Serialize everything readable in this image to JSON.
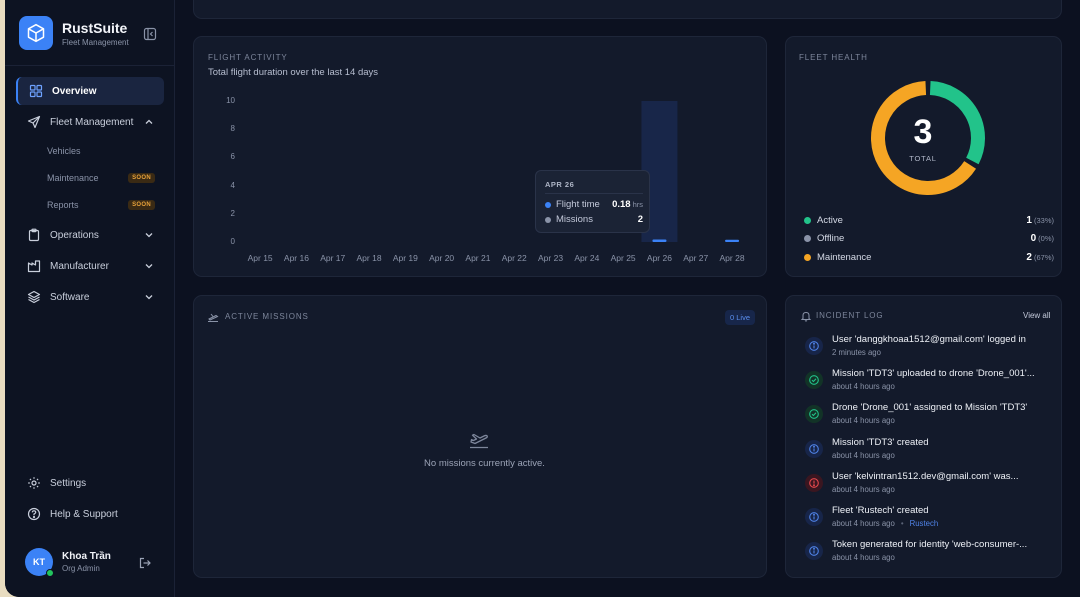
{
  "brand": {
    "name": "RustSuite",
    "subtitle": "Fleet Management"
  },
  "nav": {
    "overview": "Overview",
    "fleet_management": "Fleet Management",
    "sub": {
      "vehicles": "Vehicles",
      "maintenance": "Maintenance",
      "reports": "Reports",
      "soon": "SOON"
    },
    "operations": "Operations",
    "manufacturer": "Manufacturer",
    "software": "Software",
    "settings": "Settings",
    "help": "Help & Support"
  },
  "user": {
    "initials": "KT",
    "name": "Khoa Trần",
    "role": "Org Admin"
  },
  "flight_activity": {
    "label": "FLIGHT ACTIVITY",
    "subtitle": "Total flight duration over the last 14 days",
    "tooltip": {
      "date": "APR 26",
      "flight_time_label": "Flight time",
      "flight_time_value": "0.18",
      "flight_time_unit": "hrs",
      "missions_label": "Missions",
      "missions_value": "2"
    }
  },
  "chart_data": {
    "type": "bar",
    "categories": [
      "Apr 15",
      "Apr 16",
      "Apr 17",
      "Apr 18",
      "Apr 19",
      "Apr 20",
      "Apr 21",
      "Apr 22",
      "Apr 23",
      "Apr 24",
      "Apr 25",
      "Apr 26",
      "Apr 27",
      "Apr 28"
    ],
    "values": [
      0,
      0,
      0,
      0,
      0,
      0,
      0,
      0,
      0,
      0,
      0,
      0.18,
      0,
      0.1
    ],
    "yticks": [
      "10",
      "8",
      "6",
      "4",
      "2",
      "0"
    ],
    "ylim": [
      0,
      10
    ],
    "highlighted": "Apr 26",
    "grid": false,
    "bar_color": "#3b82f6"
  },
  "fleet_health": {
    "label": "FLEET HEALTH",
    "total": "3",
    "total_label": "TOTAL",
    "segments": [
      {
        "name": "Active",
        "value": 1,
        "count": "1",
        "pct": "(33%)",
        "color": "#22c38a"
      },
      {
        "name": "Offline",
        "value": 0,
        "count": "0",
        "pct": "(0%)",
        "color": "#8a93a8"
      },
      {
        "name": "Maintenance",
        "value": 2,
        "count": "2",
        "pct": "(67%)",
        "color": "#f5a524"
      }
    ]
  },
  "active_missions": {
    "label": "ACTIVE MISSIONS",
    "badge": "0 Live",
    "empty": "No missions currently active."
  },
  "incident_log": {
    "label": "INCIDENT LOG",
    "view_all": "View all",
    "items": [
      {
        "kind": "info",
        "title": "User 'danggkhoaa1512@gmail.com' logged in",
        "time": "2 minutes ago"
      },
      {
        "kind": "success",
        "title": "Mission 'TDT3' uploaded to drone 'Drone_001'...",
        "time": "about 4 hours ago"
      },
      {
        "kind": "success",
        "title": "Drone 'Drone_001' assigned to Mission 'TDT3'",
        "time": "about 4 hours ago"
      },
      {
        "kind": "info",
        "title": "Mission 'TDT3' created",
        "time": "about 4 hours ago"
      },
      {
        "kind": "error",
        "title": "User 'kelvintran1512.dev@gmail.com' was...",
        "time": "about 4 hours ago"
      },
      {
        "kind": "info",
        "title": "Fleet 'Rustech' created",
        "time": "about 4 hours ago",
        "tag": "Rustech"
      },
      {
        "kind": "info",
        "title": "Token generated for identity 'web-consumer-...",
        "time": "about 4 hours ago"
      }
    ]
  }
}
